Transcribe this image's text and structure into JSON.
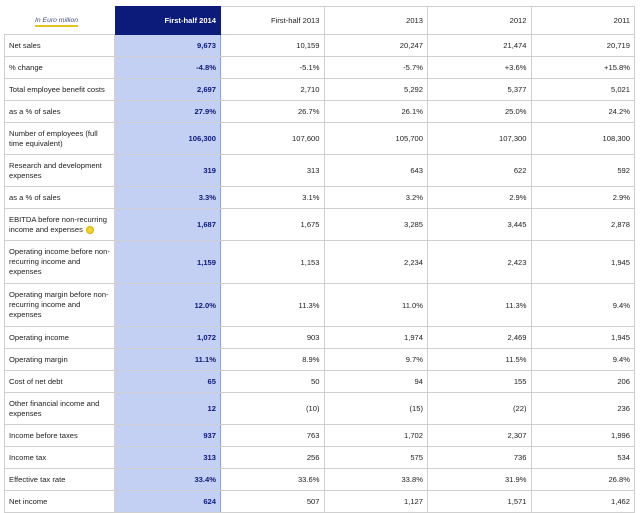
{
  "unit_label": "In Euro million",
  "columns": [
    "First-half 2014",
    "First-half 2013",
    "2013",
    "2012",
    "2011"
  ],
  "rows": [
    {
      "label": "Net sales",
      "values": [
        "9,673",
        "10,159",
        "20,247",
        "21,474",
        "20,719"
      ]
    },
    {
      "label": "% change",
      "values": [
        "-4.8%",
        "-5.1%",
        "-5.7%",
        "+3.6%",
        "+15.8%"
      ]
    },
    {
      "label": "Total employee benefit costs",
      "values": [
        "2,697",
        "2,710",
        "5,292",
        "5,377",
        "5,021"
      ]
    },
    {
      "label": "as a % of sales",
      "values": [
        "27.9%",
        "26.7%",
        "26.1%",
        "25.0%",
        "24.2%"
      ]
    },
    {
      "label": "Number of employees (full time equivalent)",
      "values": [
        "106,300",
        "107,600",
        "105,700",
        "107,300",
        "108,300"
      ]
    },
    {
      "label": "Research and development expenses",
      "values": [
        "319",
        "313",
        "643",
        "622",
        "592"
      ]
    },
    {
      "label": "as a % of sales",
      "values": [
        "3.3%",
        "3.1%",
        "3.2%",
        "2.9%",
        "2.9%"
      ]
    },
    {
      "label": "EBITDA before non-recurring income and expenses",
      "marker": true,
      "values": [
        "1,687",
        "1,675",
        "3,285",
        "3,445",
        "2,878"
      ]
    },
    {
      "label": "Operating income before non-recurring income and expenses",
      "values": [
        "1,159",
        "1,153",
        "2,234",
        "2,423",
        "1,945"
      ]
    },
    {
      "label": "Operating margin before non-recurring income and expenses",
      "values": [
        "12.0%",
        "11.3%",
        "11.0%",
        "11.3%",
        "9.4%"
      ]
    },
    {
      "label": "Operating income",
      "values": [
        "1,072",
        "903",
        "1,974",
        "2,469",
        "1,945"
      ]
    },
    {
      "label": "Operating margin",
      "values": [
        "11.1%",
        "8.9%",
        "9.7%",
        "11.5%",
        "9.4%"
      ]
    },
    {
      "label": "Cost of net debt",
      "values": [
        "65",
        "50",
        "94",
        "155",
        "206"
      ]
    },
    {
      "label": "Other financial income and expenses",
      "values": [
        "12",
        "(10)",
        "(15)",
        "(22)",
        "236"
      ]
    },
    {
      "label": "Income before taxes",
      "values": [
        "937",
        "763",
        "1,702",
        "2,307",
        "1,996"
      ]
    },
    {
      "label": "Income tax",
      "values": [
        "313",
        "256",
        "575",
        "736",
        "534"
      ]
    },
    {
      "label": "Effective tax rate",
      "values": [
        "33.4%",
        "33.6%",
        "33.8%",
        "31.9%",
        "26.8%"
      ]
    },
    {
      "label": "Net income",
      "values": [
        "624",
        "507",
        "1,127",
        "1,571",
        "1,462"
      ]
    }
  ]
}
